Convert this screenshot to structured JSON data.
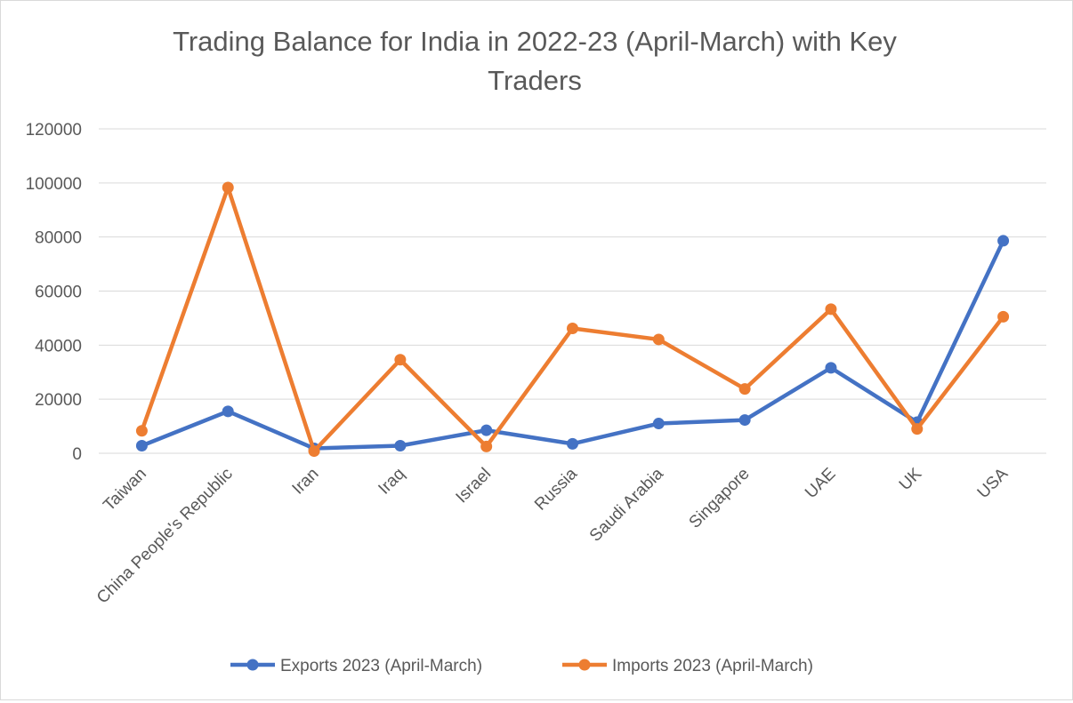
{
  "chart_data": {
    "type": "line",
    "title_lines": [
      "Trading Balance for India in 2022-23 (April-March) with Key",
      "Traders"
    ],
    "categories": [
      "Taiwan",
      "China People's Republic",
      "Iran",
      "Iraq",
      "Israel",
      "Russia",
      "Saudi Arabia",
      "Singapore",
      "UAE",
      "UK",
      "USA"
    ],
    "series": [
      {
        "name": "Exports 2023 (April-March)",
        "color": "#4472c4",
        "values": [
          2800,
          15500,
          1800,
          2800,
          8500,
          3500,
          11000,
          12300,
          31600,
          11500,
          78600
        ]
      },
      {
        "name": "Imports 2023 (April-March)",
        "color": "#ed7d31",
        "values": [
          8300,
          98300,
          800,
          34600,
          2500,
          46200,
          42100,
          23800,
          53300,
          9000,
          50500
        ]
      }
    ],
    "y_ticks": [
      "0",
      "20000",
      "40000",
      "60000",
      "80000",
      "100000",
      "120000"
    ],
    "ylim": [
      0,
      120000
    ],
    "grid": true,
    "legend_position": "bottom"
  }
}
